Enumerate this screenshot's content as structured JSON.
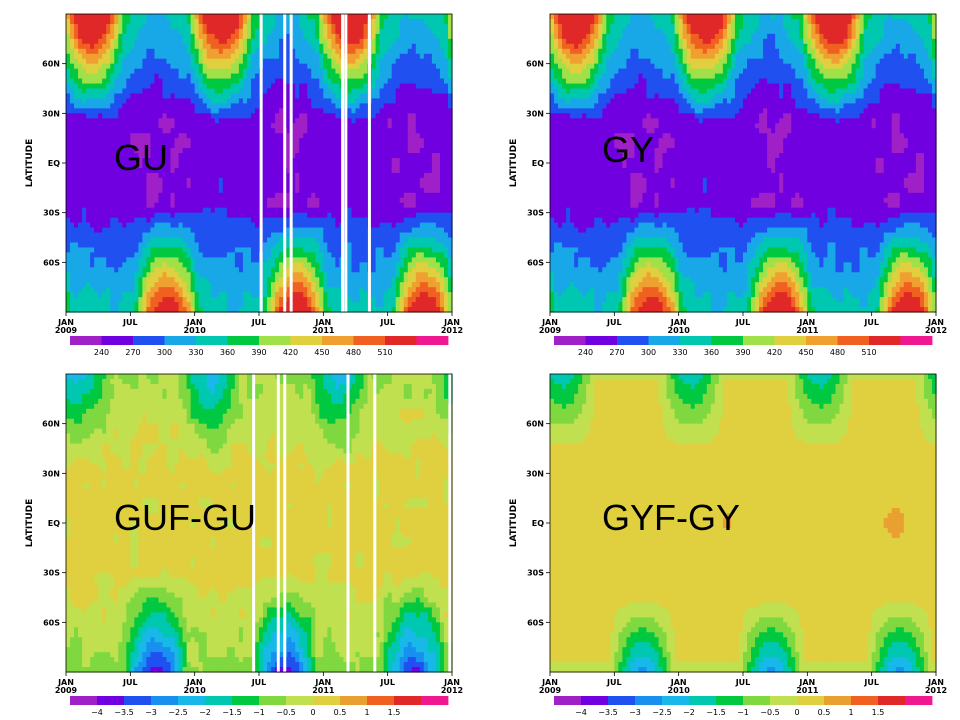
{
  "chart_data": [
    {
      "type": "heatmap",
      "panel_name": "GU",
      "ylabel": "LATITUDE",
      "x_ticks": [
        {
          "label": "JAN",
          "sub": "2009",
          "t": 0
        },
        {
          "label": "JUL",
          "sub": "",
          "t": 6
        },
        {
          "label": "JAN",
          "sub": "2010",
          "t": 12
        },
        {
          "label": "JUL",
          "sub": "",
          "t": 18
        },
        {
          "label": "JAN",
          "sub": "2011",
          "t": 24
        },
        {
          "label": "JUL",
          "sub": "",
          "t": 30
        },
        {
          "label": "JAN",
          "sub": "2012",
          "t": 36
        }
      ],
      "y_ticks": [
        {
          "label": "60N",
          "lat": 60
        },
        {
          "label": "30N",
          "lat": 30
        },
        {
          "label": "EQ",
          "lat": 0
        },
        {
          "label": "30S",
          "lat": -30
        },
        {
          "label": "60S",
          "lat": -60
        }
      ],
      "xlim": [
        0,
        36
      ],
      "ylim": [
        -90,
        90
      ],
      "mode": "abs",
      "colorbar": {
        "labels": [
          "240",
          "270",
          "300",
          "330",
          "360",
          "390",
          "420",
          "450",
          "480",
          "510"
        ],
        "levels": [
          240,
          270,
          300,
          330,
          360,
          390,
          420,
          450,
          480,
          510
        ],
        "colors": [
          "#a020c8",
          "#7000e0",
          "#2050f0",
          "#18a8e8",
          "#00c8b0",
          "#00c840",
          "#a0e048",
          "#e0d040",
          "#f0a030",
          "#f06020",
          "#e02828",
          "#f01890"
        ]
      },
      "gaps": [
        18.2,
        20.4,
        21.0,
        25.8,
        26.1,
        28.3
      ]
    },
    {
      "type": "heatmap",
      "panel_name": "GY",
      "ylabel": "LATITUDE",
      "x_ticks": [
        {
          "label": "JAN",
          "sub": "2009",
          "t": 0
        },
        {
          "label": "JUL",
          "sub": "",
          "t": 6
        },
        {
          "label": "JAN",
          "sub": "2010",
          "t": 12
        },
        {
          "label": "JUL",
          "sub": "",
          "t": 18
        },
        {
          "label": "JAN",
          "sub": "2011",
          "t": 24
        },
        {
          "label": "JUL",
          "sub": "",
          "t": 30
        },
        {
          "label": "JAN",
          "sub": "2012",
          "t": 36
        }
      ],
      "y_ticks": [
        {
          "label": "60N",
          "lat": 60
        },
        {
          "label": "30N",
          "lat": 30
        },
        {
          "label": "EQ",
          "lat": 0
        },
        {
          "label": "30S",
          "lat": -30
        },
        {
          "label": "60S",
          "lat": -60
        }
      ],
      "xlim": [
        0,
        36
      ],
      "ylim": [
        -90,
        90
      ],
      "mode": "abs",
      "colorbar": {
        "labels": [
          "240",
          "270",
          "300",
          "330",
          "360",
          "390",
          "420",
          "450",
          "480",
          "510"
        ],
        "levels": [
          240,
          270,
          300,
          330,
          360,
          390,
          420,
          450,
          480,
          510
        ],
        "colors": [
          "#a020c8",
          "#7000e0",
          "#2050f0",
          "#18a8e8",
          "#00c8b0",
          "#00c840",
          "#a0e048",
          "#e0d040",
          "#f0a030",
          "#f06020",
          "#e02828",
          "#f01890"
        ]
      },
      "gaps": []
    },
    {
      "type": "heatmap",
      "panel_name": "GUF-GU",
      "ylabel": "LATITUDE",
      "x_ticks": [
        {
          "label": "JAN",
          "sub": "2009",
          "t": 0
        },
        {
          "label": "JUL",
          "sub": "",
          "t": 6
        },
        {
          "label": "JAN",
          "sub": "2010",
          "t": 12
        },
        {
          "label": "JUL",
          "sub": "",
          "t": 18
        },
        {
          "label": "JAN",
          "sub": "2011",
          "t": 24
        },
        {
          "label": "JUL",
          "sub": "",
          "t": 30
        },
        {
          "label": "JAN",
          "sub": "2012",
          "t": 36
        }
      ],
      "y_ticks": [
        {
          "label": "60N",
          "lat": 60
        },
        {
          "label": "30N",
          "lat": 30
        },
        {
          "label": "EQ",
          "lat": 0
        },
        {
          "label": "30S",
          "lat": -30
        },
        {
          "label": "60S",
          "lat": -60
        }
      ],
      "xlim": [
        0,
        36
      ],
      "ylim": [
        -90,
        90
      ],
      "mode": "diffU",
      "colorbar": {
        "labels": [
          "−4",
          "−3.5",
          "−3",
          "−2.5",
          "−2",
          "−1.5",
          "−1",
          "−0.5",
          "0",
          "0.5",
          "1",
          "1.5"
        ],
        "levels": [
          -4,
          -3.5,
          -3,
          -2.5,
          -2,
          -1.5,
          -1,
          -0.5,
          0,
          0.5,
          1,
          1.5
        ],
        "colors": [
          "#a020c8",
          "#7000e0",
          "#2050f0",
          "#1890f0",
          "#18b8e8",
          "#00c8b0",
          "#00c840",
          "#80d840",
          "#c0e050",
          "#e0d040",
          "#e8a030",
          "#f06020",
          "#e02828",
          "#f01890"
        ]
      },
      "gaps": [
        17.5,
        19.8,
        20.4,
        26.3,
        28.8,
        35.8
      ]
    },
    {
      "type": "heatmap",
      "panel_name": "GYF-GY",
      "ylabel": "LATITUDE",
      "x_ticks": [
        {
          "label": "JAN",
          "sub": "2009",
          "t": 0
        },
        {
          "label": "JUL",
          "sub": "",
          "t": 6
        },
        {
          "label": "JAN",
          "sub": "2010",
          "t": 12
        },
        {
          "label": "JUL",
          "sub": "",
          "t": 18
        },
        {
          "label": "JAN",
          "sub": "2011",
          "t": 24
        },
        {
          "label": "JUL",
          "sub": "",
          "t": 30
        },
        {
          "label": "JAN",
          "sub": "2012",
          "t": 36
        }
      ],
      "y_ticks": [
        {
          "label": "60N",
          "lat": 60
        },
        {
          "label": "30N",
          "lat": 30
        },
        {
          "label": "EQ",
          "lat": 0
        },
        {
          "label": "30S",
          "lat": -30
        },
        {
          "label": "60S",
          "lat": -60
        }
      ],
      "xlim": [
        0,
        36
      ],
      "ylim": [
        -90,
        90
      ],
      "mode": "diffY",
      "colorbar": {
        "labels": [
          "−4",
          "−3.5",
          "−3",
          "−2.5",
          "−2",
          "−1.5",
          "−1",
          "−0.5",
          "0",
          "0.5",
          "1",
          "1.5"
        ],
        "levels": [
          -4,
          -3.5,
          -3,
          -2.5,
          -2,
          -1.5,
          -1,
          -0.5,
          0,
          0.5,
          1,
          1.5
        ],
        "colors": [
          "#a020c8",
          "#7000e0",
          "#2050f0",
          "#1890f0",
          "#18b8e8",
          "#00c8b0",
          "#00c840",
          "#80d840",
          "#c0e050",
          "#e0d040",
          "#e8a030",
          "#f06020",
          "#e02828",
          "#f01890"
        ]
      },
      "gaps": []
    }
  ]
}
